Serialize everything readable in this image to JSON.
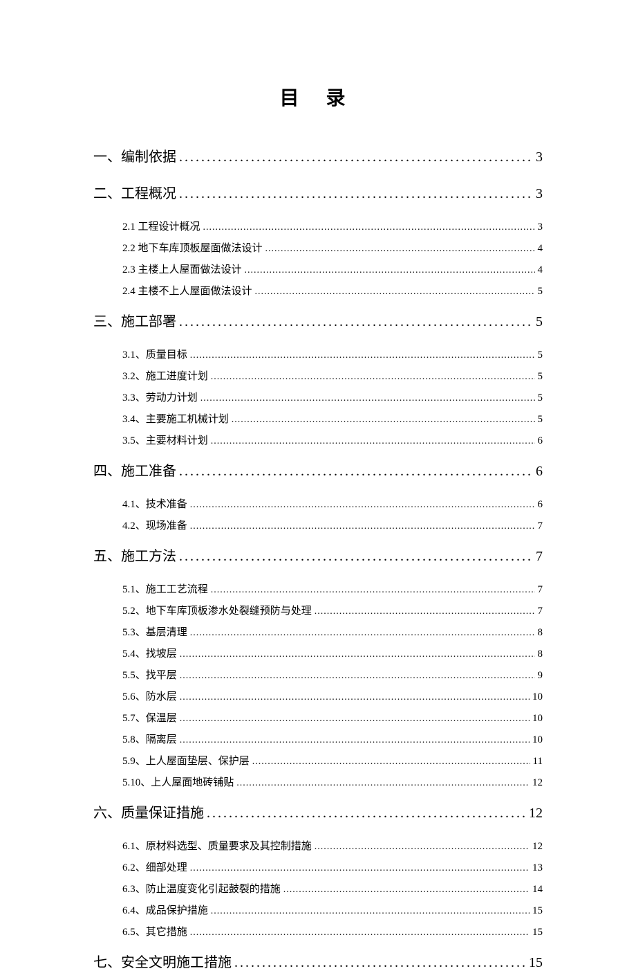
{
  "title": "目 录",
  "toc": [
    {
      "level": 1,
      "label": "一、编制依据",
      "page": "3",
      "children": []
    },
    {
      "level": 1,
      "label": "二、工程概况",
      "page": "3",
      "children": [
        {
          "label": "2.1 工程设计概况",
          "page": "3"
        },
        {
          "label": "2.2 地下车库顶板屋面做法设计",
          "page": "4"
        },
        {
          "label": "2.3 主楼上人屋面做法设计",
          "page": "4"
        },
        {
          "label": "2.4 主楼不上人屋面做法设计",
          "page": "5"
        }
      ]
    },
    {
      "level": 1,
      "label": "三、施工部署",
      "page": "5",
      "children": [
        {
          "label": "3.1、质量目标",
          "page": "5"
        },
        {
          "label": "3.2、施工进度计划",
          "page": "5"
        },
        {
          "label": "3.3、劳动力计划",
          "page": "5"
        },
        {
          "label": "3.4、主要施工机械计划",
          "page": "5"
        },
        {
          "label": "3.5、主要材料计划",
          "page": "6"
        }
      ]
    },
    {
      "level": 1,
      "label": "四、施工准备",
      "page": "6",
      "children": [
        {
          "label": "4.1、技术准备",
          "page": "6"
        },
        {
          "label": "4.2、现场准备",
          "page": "7"
        }
      ]
    },
    {
      "level": 1,
      "label": "五、施工方法",
      "page": "7",
      "children": [
        {
          "label": "5.1、施工工艺流程",
          "page": "7"
        },
        {
          "label": "5.2、地下车库顶板渗水处裂缝预防与处理",
          "page": "7"
        },
        {
          "label": "5.3、基层清理",
          "page": "8"
        },
        {
          "label": "5.4、找坡层",
          "page": "8"
        },
        {
          "label": "5.5、找平层",
          "page": "9"
        },
        {
          "label": "5.6、防水层",
          "page": "10"
        },
        {
          "label": "5.7、保温层",
          "page": "10"
        },
        {
          "label": "5.8、隔离层",
          "page": "10"
        },
        {
          "label": "5.9、上人屋面垫层、保护层",
          "page": "11"
        },
        {
          "label": "5.10、上人屋面地砖铺贴",
          "page": "12"
        }
      ]
    },
    {
      "level": 1,
      "label": "六、质量保证措施",
      "page": "12",
      "children": [
        {
          "label": "6.1、原材料选型、质量要求及其控制措施",
          "page": "12"
        },
        {
          "label": "6.2、细部处理",
          "page": "13"
        },
        {
          "label": "6.3、防止温度变化引起鼓裂的措施",
          "page": "14"
        },
        {
          "label": "6.4、成品保护措施",
          "page": "15"
        },
        {
          "label": "6.5、其它措施",
          "page": "15"
        }
      ]
    },
    {
      "level": 1,
      "label": "七、安全文明施工措施",
      "page": "15",
      "children": []
    }
  ],
  "style": {
    "background_color": "#ffffff",
    "text_color": "#000000",
    "title_fontsize": 28,
    "level1_fontsize": 20,
    "level2_fontsize": 15,
    "level1_dotchar": ".",
    "level2_dotchar": "."
  }
}
